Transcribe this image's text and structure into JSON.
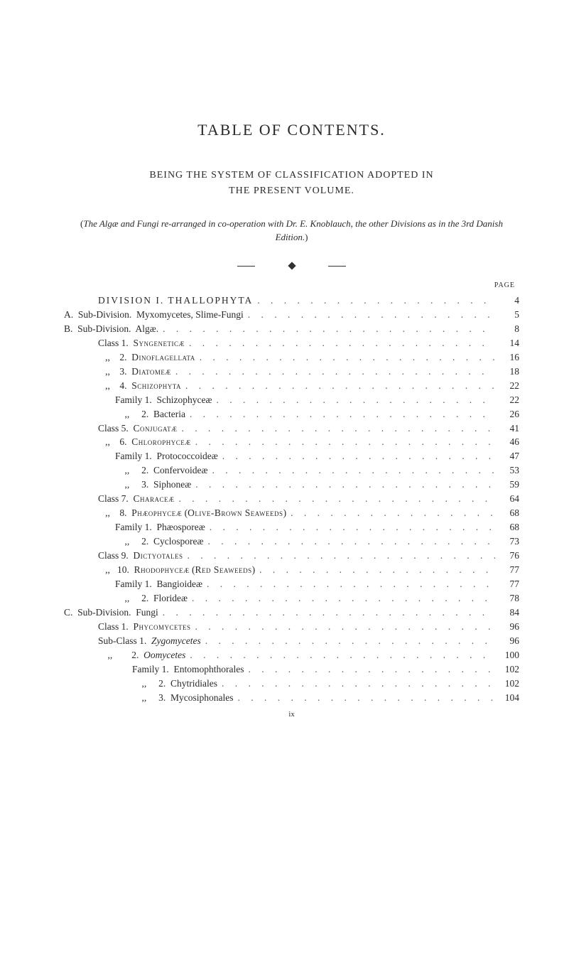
{
  "title": "TABLE OF CONTENTS.",
  "subtitle_line1": "BEING THE SYSTEM OF CLASSIFICATION ADOPTED IN",
  "subtitle_line2": "THE PRESENT VOLUME.",
  "paren_note_prefix": "(",
  "paren_note_italic1": "The Algæ and Fungi re-arranged in co-operation with Dr. E. Knoblauch",
  "paren_note_roman": ", ",
  "paren_note_italic2": "the other Divisions as in the 3rd Danish Edition.",
  "paren_note_suffix": ")",
  "page_label": "PAGE",
  "division_heading": "DIVISION I.  THALLOPHYTA",
  "division_page": "4",
  "roman_bottom": "ix",
  "entries": [
    {
      "indent": 1,
      "label": "A.  Sub-Division.  Myxomycetes, Slime-Fungi",
      "page": "5"
    },
    {
      "indent": 1,
      "label": "B.  Sub-Division.  Algæ.",
      "page": "8"
    },
    {
      "indent": 2,
      "label": "Class 1.  <span class=\"sc\">Syngeneticæ</span>",
      "page": "14"
    },
    {
      "indent": 2,
      "label": "   ,,    2.  <span class=\"sc\">Dinoflagellata</span>",
      "page": "16"
    },
    {
      "indent": 2,
      "label": "   ,,    3.  <span class=\"sc\">Diatomeæ</span>",
      "page": "18"
    },
    {
      "indent": 2,
      "label": "   ,,    4.  <span class=\"sc\">Schizophyta</span>",
      "page": "22"
    },
    {
      "indent": 3,
      "label": "Family 1.  Schizophyceæ",
      "page": "22"
    },
    {
      "indent": 3,
      "label": "    ,,     2.  Bacteria",
      "page": "26"
    },
    {
      "indent": 2,
      "label": "Class 5.  <span class=\"sc\">Conjugatæ</span>",
      "page": "41"
    },
    {
      "indent": 2,
      "label": "   ,,    6.  <span class=\"sc\">Chlorophyceæ</span>",
      "page": "46"
    },
    {
      "indent": 3,
      "label": "Family 1.  Protococcoideæ",
      "page": "47"
    },
    {
      "indent": 3,
      "label": "    ,,     2.  Confervoideæ",
      "page": "53"
    },
    {
      "indent": 3,
      "label": "    ,,     3.  Siphoneæ",
      "page": "59"
    },
    {
      "indent": 2,
      "label": "Class 7.  <span class=\"sc\">Characeæ</span>",
      "page": "64"
    },
    {
      "indent": 2,
      "label": "   ,,    8.  <span class=\"sc\">Phæophyceæ</span> (<span class=\"sc\">Olive-Brown Seaweeds</span>)",
      "page": "68"
    },
    {
      "indent": 3,
      "label": "Family 1.  Phæosporeæ",
      "page": "68"
    },
    {
      "indent": 3,
      "label": "    ,,     2.  Cyclosporeæ",
      "page": "73"
    },
    {
      "indent": 2,
      "label": "Class 9.  <span class=\"sc\">Dictyotales</span>",
      "page": "76"
    },
    {
      "indent": 2,
      "label": "   ,,   10.  <span class=\"sc\">Rhodophyceæ</span> (<span class=\"sc\">Red Seaweeds</span>)",
      "page": "77"
    },
    {
      "indent": 3,
      "label": "Family 1.  Bangioideæ",
      "page": "77"
    },
    {
      "indent": 3,
      "label": "    ,,     2.  Florideæ",
      "page": "78"
    },
    {
      "indent": 1,
      "label": "C.  Sub-Division.  Fungi",
      "page": "84"
    },
    {
      "indent": 2,
      "label": "Class 1.  <span class=\"sc\">Phycomycetes</span>",
      "page": "96"
    },
    {
      "indent": 2,
      "label": "Sub-Class 1.  <i>Zygomycetes</i>",
      "page": "96"
    },
    {
      "indent": 2,
      "label": "    ,,        2.  <i>Oomycetes</i>",
      "page": "100"
    },
    {
      "indent": 4,
      "label": "Family 1.  Entomophthorales",
      "page": "102"
    },
    {
      "indent": 4,
      "label": "    ,,     2.  Chytridiales",
      "page": "102"
    },
    {
      "indent": 4,
      "label": "    ,,     3.  Mycosiphonales",
      "page": "104"
    }
  ],
  "colors": {
    "text": "#2a2a2a",
    "bg": "#ffffff"
  },
  "fonts": {
    "title_size": 22,
    "body_size": 13.5
  }
}
